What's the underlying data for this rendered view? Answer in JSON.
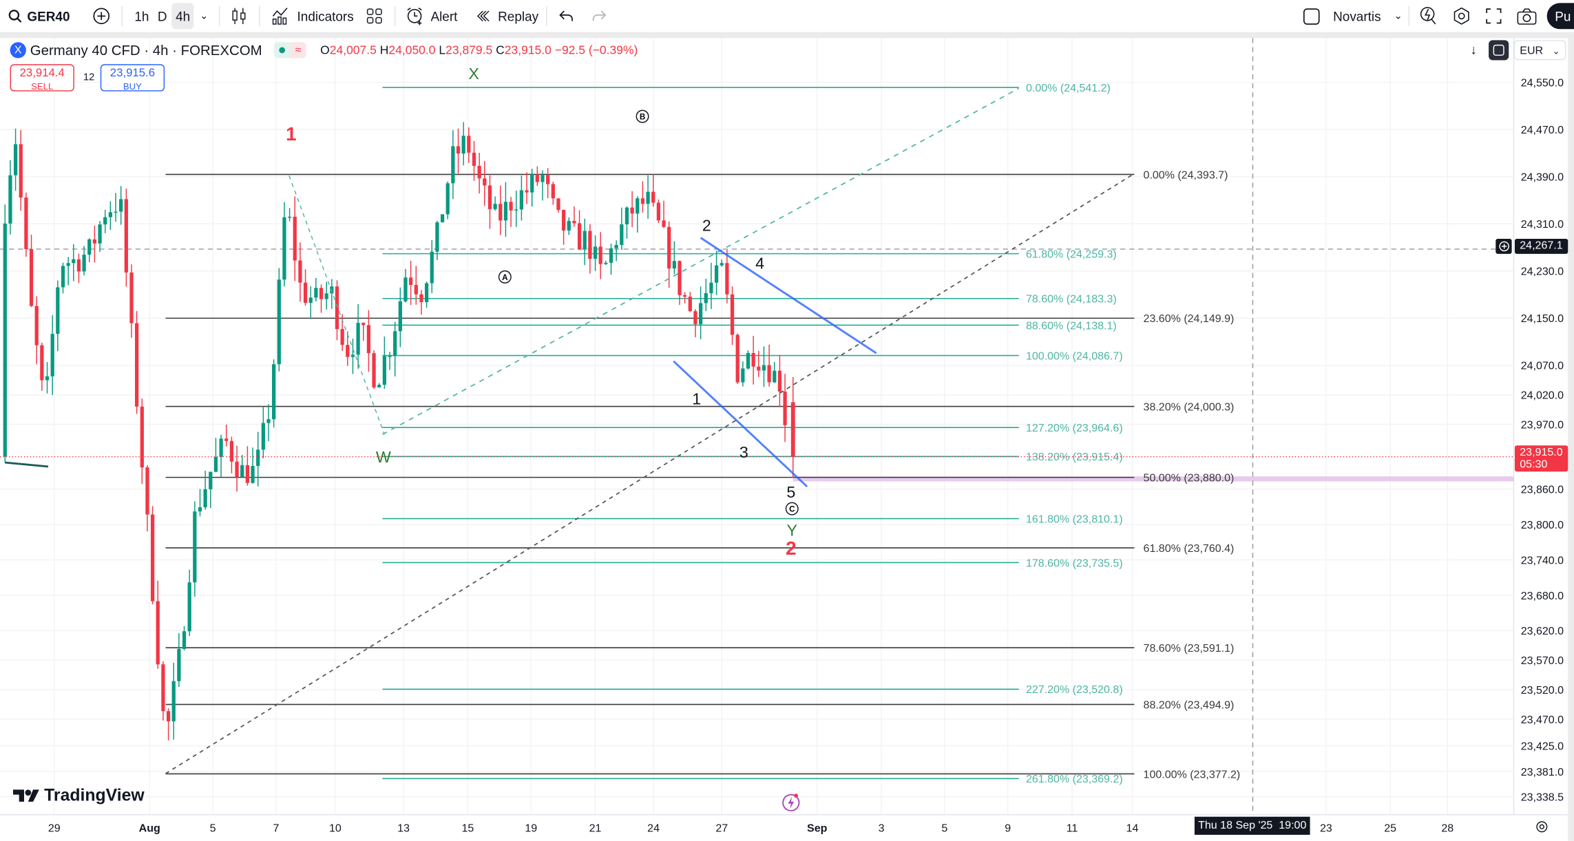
{
  "toolbar": {
    "symbol": "GER40",
    "intervals": [
      "1h",
      "D",
      "4h"
    ],
    "active_interval": "4h",
    "indicators_label": "Indicators",
    "alert_label": "Alert",
    "replay_label": "Replay",
    "watchlist_label": "Novartis",
    "publish_label": "Pu"
  },
  "legend": {
    "title": "Germany 40 CFD · 4h · FOREXCOM",
    "symbol_logo": "X",
    "open_prefix": "O",
    "open": "24,007.5",
    "high_prefix": "H",
    "high": "24,050.0",
    "low_prefix": "L",
    "low": "23,879.5",
    "close_prefix": "C",
    "close": "23,915.0",
    "change": "−92.5 (−0.39%)",
    "sell_price": "23,914.4",
    "sell_label": "SELL",
    "spread": "12",
    "buy_price": "23,915.6",
    "buy_label": "BUY"
  },
  "scale_controls": {
    "currency": "EUR"
  },
  "colors": {
    "up": "#089981",
    "down": "#f23645",
    "fib_teal": "#22ab94",
    "fib_black": "#3a3a3a",
    "trendline": "#2962ff",
    "wave_red": "#f23645",
    "wave_green": "#2e7d32",
    "highlight": "#e1bee7"
  },
  "price_axis": {
    "ticks": [
      "24,550.0",
      "24,470.0",
      "24,390.0",
      "24,310.0",
      "24,230.0",
      "24,150.0",
      "24,070.0",
      "24,020.0",
      "23,970.0",
      "23,860.0",
      "23,800.0",
      "23,740.0",
      "23,680.0",
      "23,620.0",
      "23,570.0",
      "23,520.0",
      "23,470.0",
      "23,425.0",
      "23,381.0",
      "23,338.5"
    ],
    "crosshair_price": "24,267.1",
    "last_price": "23,915.0",
    "countdown": "05:30"
  },
  "time_axis": {
    "ticks": [
      "29",
      "Aug",
      "5",
      "7",
      "10",
      "13",
      "15",
      "19",
      "21",
      "24",
      "27",
      "Sep",
      "3",
      "5",
      "9",
      "11",
      "14",
      "23",
      "25",
      "28"
    ],
    "crosshair_time": "Thu 18 Sep '25  19:00"
  },
  "chart": {
    "bar_interval": "4h",
    "price_path": [
      24264,
      24468,
      24179,
      23992,
      24247,
      24247,
      24264,
      24332,
      24349,
      24043,
      23737,
      23431,
      23584,
      23822,
      23890,
      23941,
      23890,
      23890,
      24009,
      24349,
      24196,
      24179,
      24196,
      24094,
      24128,
      24043,
      24111,
      24230,
      24196,
      24281,
      24417,
      24451,
      24366,
      24315,
      24349,
      24366,
      24392,
      24315,
      24290,
      24281,
      24222,
      24290,
      24332,
      24349,
      24290,
      24213,
      24154,
      24196,
      24230,
      24060,
      24094,
      24069,
      24035,
      23915
    ],
    "last_bar": {
      "open": 24007.5,
      "high": 24050.0,
      "low": 23879.5,
      "close": 23915.0
    }
  },
  "fib_retracement": [
    {
      "label": "0.00% (24,393.7)",
      "price": 24393.7
    },
    {
      "label": "23.60% (24,149.9)",
      "price": 24149.9
    },
    {
      "label": "38.20% (24,000.3)",
      "price": 24000.3
    },
    {
      "label": "50.00% (23,880.0)",
      "price": 23880.0
    },
    {
      "label": "61.80% (23,760.4)",
      "price": 23760.4
    },
    {
      "label": "78.60% (23,591.1)",
      "price": 23591.1
    },
    {
      "label": "88.20% (23,494.9)",
      "price": 23494.9
    },
    {
      "label": "100.00% (23,377.2)",
      "price": 23377.2
    }
  ],
  "fib_extension": [
    {
      "label": "0.00% (24,541.2)",
      "price": 24541.2
    },
    {
      "label": "61.80% (24,259.3)",
      "price": 24259.3
    },
    {
      "label": "78.60% (24,183.3)",
      "price": 24183.3
    },
    {
      "label": "88.60% (24,138.1)",
      "price": 24138.1
    },
    {
      "label": "100.00% (24,086.7)",
      "price": 24086.7
    },
    {
      "label": "127.20% (23,964.6)",
      "price": 23964.6
    },
    {
      "label": "138.20% (23,915.4)",
      "price": 23915.4
    },
    {
      "label": "161.80% (23,810.1)",
      "price": 23810.1
    },
    {
      "label": "178.60% (23,735.5)",
      "price": 23735.5
    },
    {
      "label": "227.20% (23,520.8)",
      "price": 23520.8
    },
    {
      "label": "261.80% (23,369.2)",
      "price": 23369.2
    }
  ],
  "wave_labels": {
    "X": "X",
    "W": "W",
    "Y": "Y",
    "red1": "1",
    "red2": "2",
    "A": "A",
    "B": "B",
    "C": "C",
    "n1": "1",
    "n2": "2",
    "n3": "3",
    "n4": "4",
    "n5": "5"
  },
  "branding": {
    "logo_text": "TradingView"
  }
}
